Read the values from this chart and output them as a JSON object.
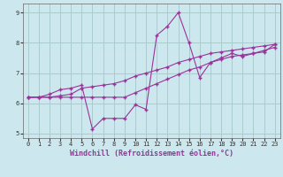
{
  "xlabel": "Windchill (Refroidissement éolien,°C)",
  "bg_color": "#cce8ee",
  "grid_color": "#aacccc",
  "line_color": "#993399",
  "xlim": [
    -0.5,
    23.5
  ],
  "ylim": [
    4.85,
    9.3
  ],
  "yticks": [
    5,
    6,
    7,
    8,
    9
  ],
  "xticks": [
    0,
    1,
    2,
    3,
    4,
    5,
    6,
    7,
    8,
    9,
    10,
    11,
    12,
    13,
    14,
    15,
    16,
    17,
    18,
    19,
    20,
    21,
    22,
    23
  ],
  "s1_x": [
    0,
    1,
    2,
    3,
    4,
    5,
    6,
    7,
    8,
    9,
    10,
    11,
    12,
    13,
    14,
    15,
    16,
    17,
    18,
    19,
    20,
    21,
    22,
    23
  ],
  "s1_y": [
    6.2,
    6.2,
    6.3,
    6.45,
    6.5,
    6.6,
    5.15,
    5.5,
    5.5,
    5.5,
    5.95,
    5.8,
    8.25,
    8.55,
    9.0,
    8.0,
    6.85,
    7.35,
    7.5,
    7.65,
    7.55,
    7.65,
    7.7,
    7.95
  ],
  "s2_x": [
    0,
    1,
    2,
    3,
    4,
    5,
    6,
    7,
    8,
    9,
    10,
    11,
    12,
    13,
    14,
    15,
    16,
    17,
    18,
    19,
    20,
    21,
    22,
    23
  ],
  "s2_y": [
    6.2,
    6.2,
    6.2,
    6.25,
    6.3,
    6.5,
    6.55,
    6.6,
    6.65,
    6.75,
    6.9,
    7.0,
    7.1,
    7.2,
    7.35,
    7.45,
    7.55,
    7.65,
    7.7,
    7.75,
    7.8,
    7.85,
    7.9,
    7.95
  ],
  "s3_x": [
    0,
    1,
    2,
    3,
    4,
    5,
    6,
    7,
    8,
    9,
    10,
    11,
    12,
    13,
    14,
    15,
    16,
    17,
    18,
    19,
    20,
    21,
    22,
    23
  ],
  "s3_y": [
    6.2,
    6.2,
    6.2,
    6.2,
    6.2,
    6.2,
    6.2,
    6.2,
    6.2,
    6.2,
    6.35,
    6.5,
    6.65,
    6.8,
    6.95,
    7.1,
    7.2,
    7.35,
    7.45,
    7.55,
    7.6,
    7.65,
    7.75,
    7.85
  ]
}
